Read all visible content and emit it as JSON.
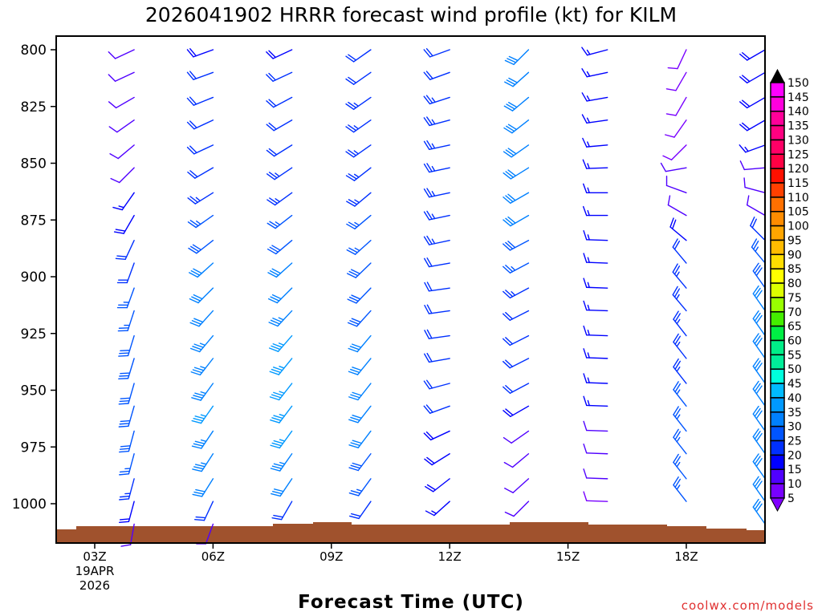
{
  "chart_data": {
    "type": "wind-barb",
    "title": "2026041902 HRRR forecast wind profile (kt) for KILM",
    "xlabel": "Forecast Time (UTC)",
    "ylabel": "",
    "credit": "coolwx.com/models",
    "y_ticks": [
      "800",
      "825",
      "850",
      "875",
      "900",
      "925",
      "950",
      "975",
      "1000"
    ],
    "y_tick_values": [
      800,
      825,
      850,
      875,
      900,
      925,
      950,
      975,
      1000
    ],
    "ylim": [
      1020,
      780
    ],
    "xlim_hours": [
      2,
      20.05
    ],
    "x_ticks": [
      {
        "hour": 3,
        "label": "03Z",
        "sub1": "19APR",
        "sub2": "2026"
      },
      {
        "hour": 6,
        "label": "06Z"
      },
      {
        "hour": 9,
        "label": "09Z"
      },
      {
        "hour": 12,
        "label": "12Z"
      },
      {
        "hour": 15,
        "label": "15Z"
      },
      {
        "hour": 18,
        "label": "18Z"
      }
    ],
    "levels_mb": [
      800,
      810,
      821,
      831,
      842,
      852,
      863,
      873,
      884,
      894,
      905,
      915,
      926,
      936,
      947,
      957,
      968,
      978,
      989,
      999,
      1009
    ],
    "columns": [
      {
        "hour": 4,
        "dir": [
          245,
          245,
          240,
          235,
          230,
          225,
          215,
          210,
          205,
          200,
          200,
          198,
          197,
          197,
          196,
          196,
          195,
          195,
          195,
          195,
          190
        ],
        "speed": [
          10,
          10,
          10,
          10,
          12,
          12,
          15,
          18,
          20,
          22,
          25,
          25,
          28,
          28,
          28,
          28,
          28,
          26,
          24,
          18,
          12
        ]
      },
      {
        "hour": 6,
        "dir": [
          250,
          250,
          248,
          245,
          245,
          240,
          238,
          235,
          232,
          228,
          225,
          222,
          220,
          218,
          216,
          215,
          214,
          213,
          212,
          205,
          200
        ],
        "speed": [
          18,
          20,
          22,
          22,
          22,
          22,
          24,
          26,
          28,
          30,
          32,
          32,
          34,
          34,
          34,
          35,
          34,
          33,
          30,
          22,
          12
        ]
      },
      {
        "hour": 8,
        "dir": [
          245,
          245,
          242,
          240,
          238,
          236,
          234,
          232,
          230,
          228,
          225,
          223,
          221,
          219,
          218,
          217,
          216,
          215,
          214,
          210,
          null
        ],
        "speed": [
          18,
          20,
          20,
          22,
          22,
          24,
          24,
          26,
          28,
          30,
          32,
          34,
          35,
          35,
          36,
          36,
          35,
          34,
          30,
          20,
          null
        ]
      },
      {
        "hour": 10,
        "dir": [
          235,
          235,
          235,
          235,
          235,
          232,
          230,
          230,
          228,
          226,
          224,
          222,
          220,
          219,
          218,
          218,
          217,
          217,
          216,
          215,
          null
        ],
        "speed": [
          22,
          22,
          24,
          24,
          24,
          24,
          24,
          26,
          26,
          28,
          28,
          28,
          30,
          30,
          30,
          30,
          30,
          28,
          26,
          20,
          null
        ]
      },
      {
        "hour": 12,
        "dir": [
          250,
          250,
          252,
          255,
          258,
          258,
          258,
          258,
          258,
          260,
          262,
          262,
          262,
          260,
          255,
          250,
          245,
          238,
          232,
          228,
          null
        ],
        "speed": [
          22,
          22,
          24,
          24,
          24,
          24,
          24,
          24,
          24,
          22,
          22,
          20,
          20,
          20,
          20,
          20,
          18,
          18,
          18,
          16,
          null
        ]
      },
      {
        "hour": 14,
        "dir": [
          225,
          228,
          230,
          232,
          235,
          238,
          240,
          240,
          242,
          242,
          242,
          243,
          243,
          243,
          242,
          240,
          235,
          230,
          228,
          225,
          null
        ],
        "speed": [
          30,
          30,
          30,
          30,
          30,
          30,
          30,
          30,
          28,
          26,
          24,
          22,
          22,
          22,
          20,
          18,
          12,
          10,
          10,
          10,
          null
        ]
      },
      {
        "hour": 16,
        "dir": [
          255,
          258,
          260,
          262,
          265,
          268,
          270,
          270,
          272,
          272,
          272,
          272,
          272,
          272,
          272,
          272,
          272,
          272,
          272,
          272,
          null
        ],
        "speed": [
          15,
          15,
          15,
          15,
          15,
          15,
          15,
          15,
          15,
          15,
          15,
          15,
          15,
          15,
          15,
          15,
          12,
          10,
          10,
          8,
          null
        ]
      },
      {
        "hour": 18,
        "dir": [
          205,
          210,
          210,
          215,
          225,
          260,
          290,
          300,
          310,
          320,
          320,
          320,
          322,
          322,
          322,
          322,
          322,
          322,
          322,
          322,
          null
        ],
        "speed": [
          8,
          8,
          8,
          8,
          8,
          10,
          10,
          12,
          18,
          22,
          24,
          24,
          24,
          24,
          24,
          25,
          25,
          25,
          25,
          25,
          null
        ]
      },
      {
        "hour": 20,
        "dir": [
          240,
          240,
          240,
          240,
          250,
          265,
          285,
          300,
          315,
          320,
          325,
          325,
          325,
          325,
          325,
          325,
          325,
          325,
          325,
          325,
          325
        ],
        "speed": [
          18,
          18,
          18,
          18,
          15,
          10,
          10,
          12,
          20,
          25,
          28,
          30,
          30,
          30,
          30,
          30,
          30,
          30,
          30,
          30,
          30
        ]
      }
    ],
    "colorbar": {
      "labels": [
        "150",
        "145",
        "140",
        "135",
        "130",
        "125",
        "120",
        "115",
        "110",
        "105",
        "100",
        "95",
        "90",
        "85",
        "80",
        "75",
        "70",
        "65",
        "60",
        "55",
        "50",
        "45",
        "40",
        "35",
        "30",
        "25",
        "20",
        "15",
        "10",
        "5"
      ],
      "colors": [
        "#ff00ff",
        "#ff00dd",
        "#ff0099",
        "#ff0080",
        "#ff0066",
        "#ff0044",
        "#ff1000",
        "#ff4000",
        "#ff7000",
        "#ff8c00",
        "#ffa500",
        "#ffbb00",
        "#ffdd00",
        "#ffff00",
        "#ddff00",
        "#99ff00",
        "#44ee00",
        "#00ee44",
        "#00ee88",
        "#00ee99",
        "#00ffdd",
        "#00bbff",
        "#0099ff",
        "#0080ff",
        "#0055ff",
        "#0030ff",
        "#0000ff",
        "#5000ff",
        "#7800ff"
      ],
      "top_arrow_color": "#000000",
      "bottom_arrow_color": "#8000ff"
    },
    "ground_color": "#a0522d"
  }
}
